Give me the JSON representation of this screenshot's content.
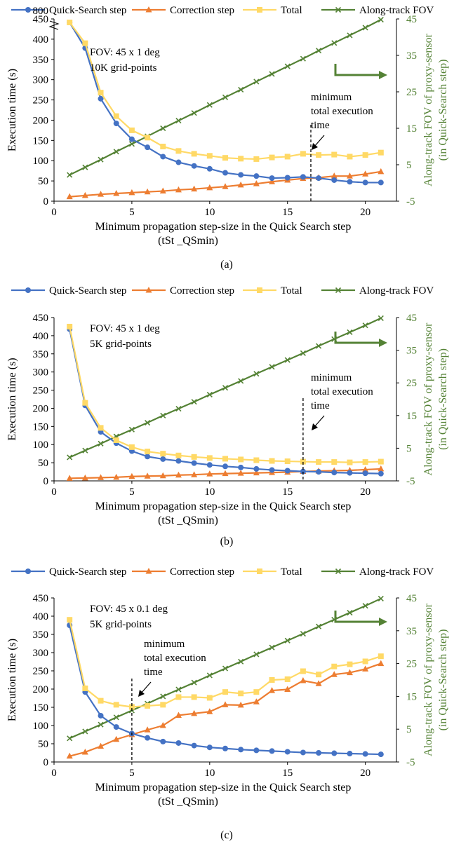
{
  "colors": {
    "quick_search": "#4472C4",
    "correction": "#ED7D31",
    "total": "#FFD966",
    "fov": "#548235",
    "axis": "#000000",
    "grid": "#D9D9D9"
  },
  "chart_data": [
    {
      "type": "line",
      "panel_label": "(a)",
      "xlabel": "Minimum propagation step-size in the Quick Search step",
      "xlabel2": "(tSt _QSmin)",
      "ylabel": "Execution time (s)",
      "y2label": "Along-track FOV of proxy-sensor",
      "y2label2": "(in Quick-Search step)",
      "xlim": [
        0,
        22
      ],
      "ylim": [
        0,
        450
      ],
      "y2lim": [
        -5,
        45
      ],
      "xticks": [
        0,
        5,
        10,
        15,
        20
      ],
      "yticks": [
        0,
        50,
        100,
        150,
        200,
        250,
        300,
        350,
        400,
        450
      ],
      "y_break_label": "800",
      "y2ticks": [
        -5,
        5,
        15,
        25,
        35,
        45
      ],
      "grid": false,
      "legend_position": "top",
      "annotation": {
        "lines": [
          "FOV: 45 x 1 deg",
          "10K grid-points"
        ]
      },
      "min_marker": {
        "x": 16.5,
        "lines": [
          "minimum",
          "total execution",
          "time"
        ]
      },
      "x": [
        1,
        2,
        3,
        4,
        5,
        6,
        7,
        8,
        9,
        10,
        11,
        12,
        13,
        14,
        15,
        16,
        17,
        18,
        19,
        20,
        21
      ],
      "series": [
        {
          "name": "Quick-Search step",
          "axis": "left",
          "marker": "circle",
          "values": [
            790,
            378,
            253,
            192,
            153,
            133,
            110,
            96,
            87,
            80,
            70,
            65,
            62,
            57,
            58,
            60,
            57,
            52,
            48,
            46,
            46
          ]
        },
        {
          "name": "Correction step",
          "axis": "left",
          "marker": "triangle",
          "values": [
            11,
            14,
            17,
            19,
            21,
            23,
            25,
            28,
            30,
            33,
            36,
            40,
            43,
            48,
            52,
            56,
            58,
            62,
            62,
            67,
            73
          ]
        },
        {
          "name": "Total",
          "axis": "left",
          "marker": "square",
          "values": [
            800,
            390,
            268,
            210,
            175,
            157,
            135,
            124,
            117,
            112,
            107,
            105,
            104,
            108,
            110,
            117,
            114,
            115,
            110,
            114,
            120
          ]
        },
        {
          "name": "Along-track FOV",
          "axis": "right",
          "marker": "x",
          "values": [
            2.2,
            4.3,
            6.4,
            8.6,
            10.7,
            12.8,
            15,
            17.1,
            19.2,
            21.4,
            23.5,
            25.6,
            27.8,
            29.9,
            32,
            34.1,
            36.3,
            38.4,
            40.5,
            42.6,
            44.8
          ]
        }
      ]
    },
    {
      "type": "line",
      "panel_label": "(b)",
      "xlabel": "Minimum propagation step-size in the Quick Search step",
      "xlabel2": "(tSt _QSmin)",
      "ylabel": "Execution time (s)",
      "y2label": "Along-track FOV of proxy-sensor",
      "y2label2": "(in Quick-Search step)",
      "xlim": [
        0,
        22
      ],
      "ylim": [
        0,
        450
      ],
      "y2lim": [
        -5,
        45
      ],
      "xticks": [
        0,
        5,
        10,
        15,
        20
      ],
      "yticks": [
        0,
        50,
        100,
        150,
        200,
        250,
        300,
        350,
        400,
        450
      ],
      "y2ticks": [
        -5,
        5,
        15,
        25,
        35,
        45
      ],
      "grid": false,
      "legend_position": "top",
      "annotation": {
        "lines": [
          "FOV: 45 x 1 deg",
          "5K grid-points"
        ]
      },
      "min_marker": {
        "x": 16,
        "lines": [
          "minimum",
          "total execution",
          "time"
        ]
      },
      "x": [
        1,
        2,
        3,
        4,
        5,
        6,
        7,
        8,
        9,
        10,
        11,
        12,
        13,
        14,
        15,
        16,
        17,
        18,
        19,
        20,
        21
      ],
      "series": [
        {
          "name": "Quick-Search step",
          "axis": "left",
          "marker": "circle",
          "values": [
            418,
            208,
            135,
            104,
            82,
            67,
            60,
            55,
            49,
            44,
            40,
            37,
            33,
            30,
            28,
            26,
            25,
            23,
            22,
            21,
            20
          ]
        },
        {
          "name": "Correction step",
          "axis": "left",
          "marker": "triangle",
          "values": [
            7,
            8,
            9,
            10,
            12,
            13,
            14,
            16,
            17,
            19,
            20,
            21,
            22,
            23,
            24,
            26,
            27,
            28,
            29,
            31,
            33
          ]
        },
        {
          "name": "Total",
          "axis": "left",
          "marker": "square",
          "values": [
            425,
            215,
            146,
            112,
            93,
            81,
            75,
            70,
            66,
            63,
            61,
            59,
            57,
            55,
            54,
            53,
            52,
            52,
            51,
            52,
            53
          ]
        },
        {
          "name": "Along-track FOV",
          "axis": "right",
          "marker": "x",
          "values": [
            2.2,
            4.3,
            6.4,
            8.6,
            10.7,
            12.8,
            15,
            17.1,
            19.2,
            21.4,
            23.5,
            25.6,
            27.8,
            29.9,
            32,
            34.1,
            36.3,
            38.4,
            40.5,
            42.6,
            44.8
          ]
        }
      ]
    },
    {
      "type": "line",
      "panel_label": "(c)",
      "xlabel": "Minimum propagation step-size in the Quick Search step",
      "xlabel2": "(tSt _QSmin)",
      "ylabel": "Execution time (s)",
      "y2label": "Along-track FOV of proxy-sensor",
      "y2label2": "(in Quick-Search step)",
      "xlim": [
        0,
        22
      ],
      "ylim": [
        0,
        450
      ],
      "y2lim": [
        -5,
        45
      ],
      "xticks": [
        0,
        5,
        10,
        15,
        20
      ],
      "yticks": [
        0,
        50,
        100,
        150,
        200,
        250,
        300,
        350,
        400,
        450
      ],
      "y2ticks": [
        -5,
        5,
        15,
        25,
        35,
        45
      ],
      "grid": false,
      "legend_position": "top",
      "annotation": {
        "lines": [
          "FOV: 45 x 0.1 deg",
          "5K grid-points"
        ]
      },
      "min_marker": {
        "x": 5,
        "lines": [
          "minimum",
          "total execution",
          "time"
        ]
      },
      "x": [
        1,
        2,
        3,
        4,
        5,
        6,
        7,
        8,
        9,
        10,
        11,
        12,
        13,
        14,
        15,
        16,
        17,
        18,
        19,
        20,
        21
      ],
      "series": [
        {
          "name": "Quick-Search step",
          "axis": "left",
          "marker": "circle",
          "values": [
            375,
            192,
            127,
            96,
            78,
            66,
            56,
            52,
            45,
            40,
            37,
            34,
            32,
            30,
            28,
            26,
            25,
            24,
            23,
            22,
            21
          ]
        },
        {
          "name": "Correction step",
          "axis": "left",
          "marker": "triangle",
          "values": [
            16,
            27,
            43,
            62,
            75,
            88,
            100,
            128,
            133,
            138,
            157,
            156,
            165,
            196,
            199,
            223,
            215,
            240,
            245,
            255,
            270
          ]
        },
        {
          "name": "Total",
          "axis": "left",
          "marker": "square",
          "values": [
            390,
            202,
            168,
            157,
            151,
            154,
            157,
            178,
            178,
            176,
            192,
            188,
            192,
            225,
            227,
            249,
            240,
            262,
            268,
            276,
            290
          ]
        },
        {
          "name": "Along-track FOV",
          "axis": "right",
          "marker": "x",
          "values": [
            2.2,
            4.3,
            6.4,
            8.6,
            10.7,
            12.8,
            15,
            17.1,
            19.2,
            21.4,
            23.5,
            25.6,
            27.8,
            29.9,
            32,
            34.1,
            36.3,
            38.4,
            40.5,
            42.6,
            44.8
          ]
        }
      ]
    }
  ]
}
